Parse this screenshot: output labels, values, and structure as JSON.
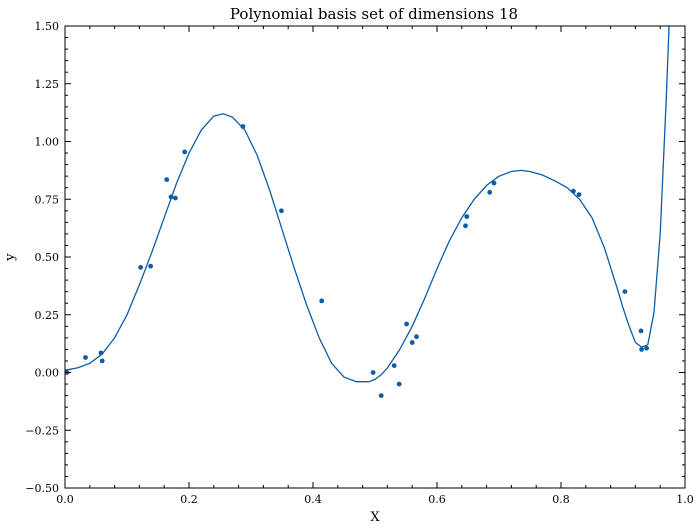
{
  "chart_data": {
    "type": "scatter",
    "title": "Polynomial basis set of dimensions 18",
    "xlabel": "X",
    "ylabel": "y",
    "xlim": [
      0.0,
      1.0
    ],
    "ylim": [
      -0.5,
      1.5
    ],
    "x_ticks": [
      0.0,
      0.2,
      0.4,
      0.6,
      0.8,
      1.0
    ],
    "x_tick_labels": [
      "0.0",
      "0.2",
      "0.4",
      "0.6",
      "0.8",
      "1.0"
    ],
    "y_ticks": [
      -0.5,
      -0.25,
      0.0,
      0.25,
      0.5,
      0.75,
      1.0,
      1.25,
      1.5
    ],
    "y_tick_labels": [
      "−0.50",
      "−0.25",
      "0.00",
      "0.25",
      "0.50",
      "0.75",
      "1.00",
      "1.25",
      "1.50"
    ],
    "grid": false,
    "color": "#0c5da5",
    "series": [
      {
        "kind": "points",
        "x": [
          0.003,
          0.033,
          0.058,
          0.06,
          0.122,
          0.138,
          0.164,
          0.171,
          0.178,
          0.193,
          0.287,
          0.349,
          0.414,
          0.497,
          0.51,
          0.531,
          0.539,
          0.551,
          0.56,
          0.567,
          0.646,
          0.648,
          0.685,
          0.692,
          0.82,
          0.829,
          0.903,
          0.929,
          0.93,
          0.938
        ],
        "y": [
          0.0,
          0.065,
          0.085,
          0.05,
          0.455,
          0.46,
          0.835,
          0.76,
          0.755,
          0.955,
          1.065,
          0.7,
          0.31,
          0.0,
          -0.1,
          0.03,
          -0.05,
          0.21,
          0.13,
          0.155,
          0.635,
          0.675,
          0.78,
          0.82,
          0.785,
          0.77,
          0.35,
          0.18,
          0.1,
          0.105
        ]
      },
      {
        "kind": "fit",
        "x": [
          0.0,
          0.02,
          0.04,
          0.06,
          0.08,
          0.1,
          0.12,
          0.14,
          0.16,
          0.18,
          0.2,
          0.22,
          0.24,
          0.255,
          0.27,
          0.29,
          0.31,
          0.33,
          0.35,
          0.37,
          0.39,
          0.41,
          0.43,
          0.45,
          0.47,
          0.49,
          0.5,
          0.51,
          0.52,
          0.54,
          0.56,
          0.58,
          0.6,
          0.62,
          0.64,
          0.66,
          0.68,
          0.7,
          0.72,
          0.735,
          0.75,
          0.77,
          0.79,
          0.81,
          0.83,
          0.85,
          0.87,
          0.89,
          0.9,
          0.91,
          0.92,
          0.93,
          0.94,
          0.95,
          0.96,
          0.97,
          0.975
        ],
        "y": [
          0.01,
          0.02,
          0.04,
          0.08,
          0.15,
          0.25,
          0.38,
          0.52,
          0.67,
          0.82,
          0.95,
          1.05,
          1.11,
          1.12,
          1.105,
          1.05,
          0.94,
          0.79,
          0.62,
          0.45,
          0.29,
          0.15,
          0.04,
          -0.02,
          -0.04,
          -0.04,
          -0.03,
          -0.01,
          0.02,
          0.1,
          0.2,
          0.32,
          0.45,
          0.57,
          0.67,
          0.75,
          0.81,
          0.85,
          0.87,
          0.875,
          0.87,
          0.855,
          0.83,
          0.8,
          0.75,
          0.67,
          0.54,
          0.37,
          0.28,
          0.2,
          0.13,
          0.11,
          0.12,
          0.26,
          0.6,
          1.2,
          1.55
        ]
      }
    ]
  }
}
